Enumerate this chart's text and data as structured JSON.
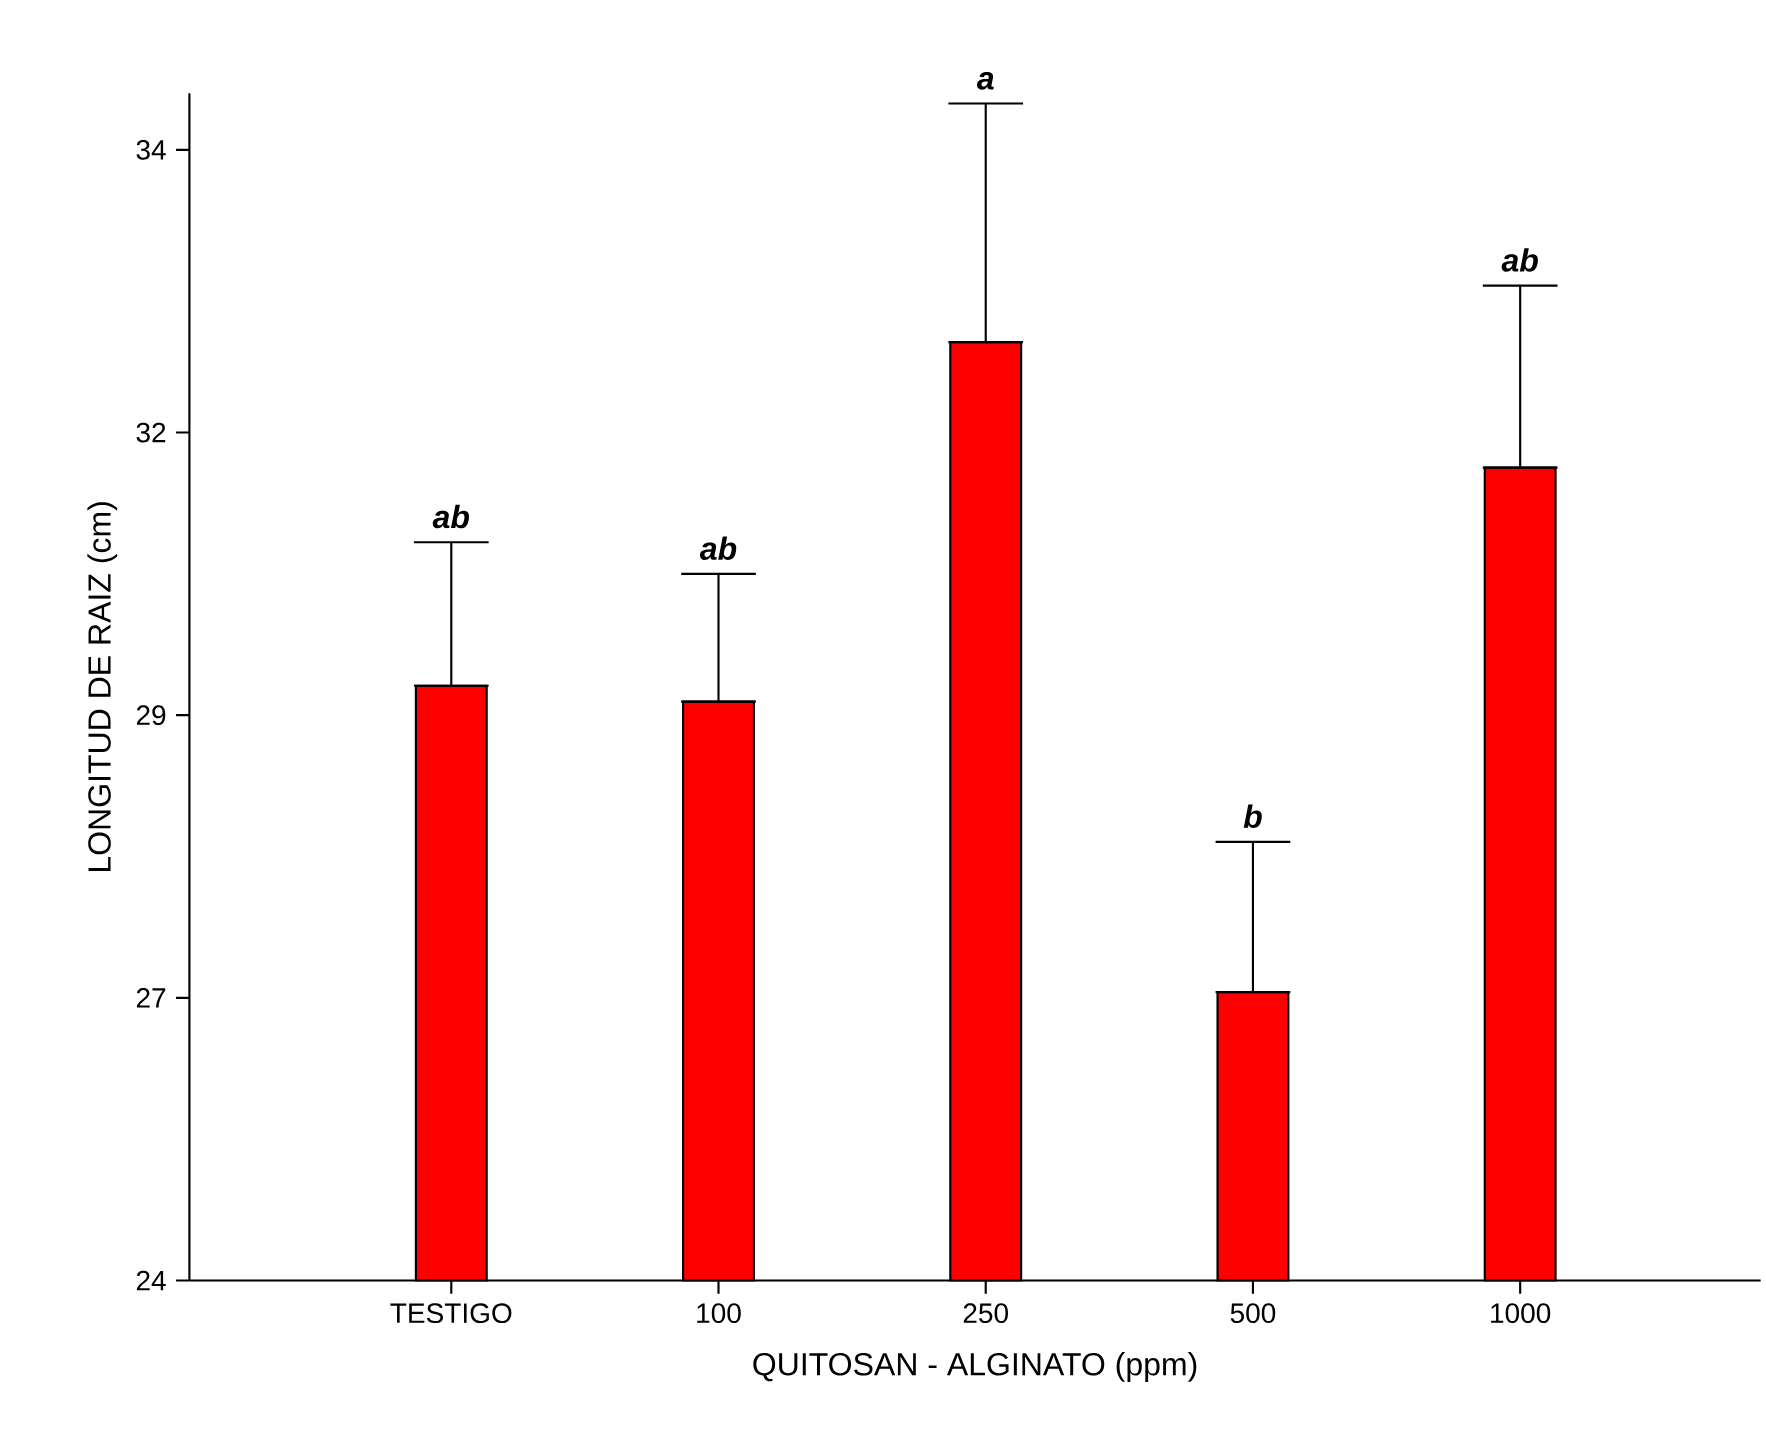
{
  "chart_data": {
    "type": "bar",
    "xlabel": "QUITOSAN - ALGINATO (ppm)",
    "ylabel": "LONGITUD DE RAIZ (cm)",
    "categories": [
      "TESTIGO",
      "100",
      "250",
      "500",
      "1000"
    ],
    "values": [
      29.26,
      29.12,
      32.3,
      26.55,
      31.19
    ],
    "errors": [
      [
        29.26,
        30.53
      ],
      [
        29.12,
        30.25
      ],
      [
        32.3,
        34.41
      ],
      [
        26.55,
        27.88
      ],
      [
        31.19,
        32.8
      ]
    ],
    "color": "#ff0000",
    "ylim": [
      24,
      34.5
    ],
    "yticks": [
      24,
      {
        "value": 26.5,
        "label": "27"
      },
      29,
      {
        "value": 31.5,
        "label": "32"
      },
      34
    ],
    "annotations": [
      {
        "text": "ab",
        "x": "TESTIGO",
        "y": 30.53
      },
      {
        "text": "ab",
        "x": "100",
        "y": 30.25
      },
      {
        "text": "a",
        "x": "250",
        "y": 34.41
      },
      {
        "text": "b",
        "x": "500",
        "y": 27.88
      },
      {
        "text": "ab",
        "x": "1000",
        "y": 32.8
      }
    ]
  }
}
